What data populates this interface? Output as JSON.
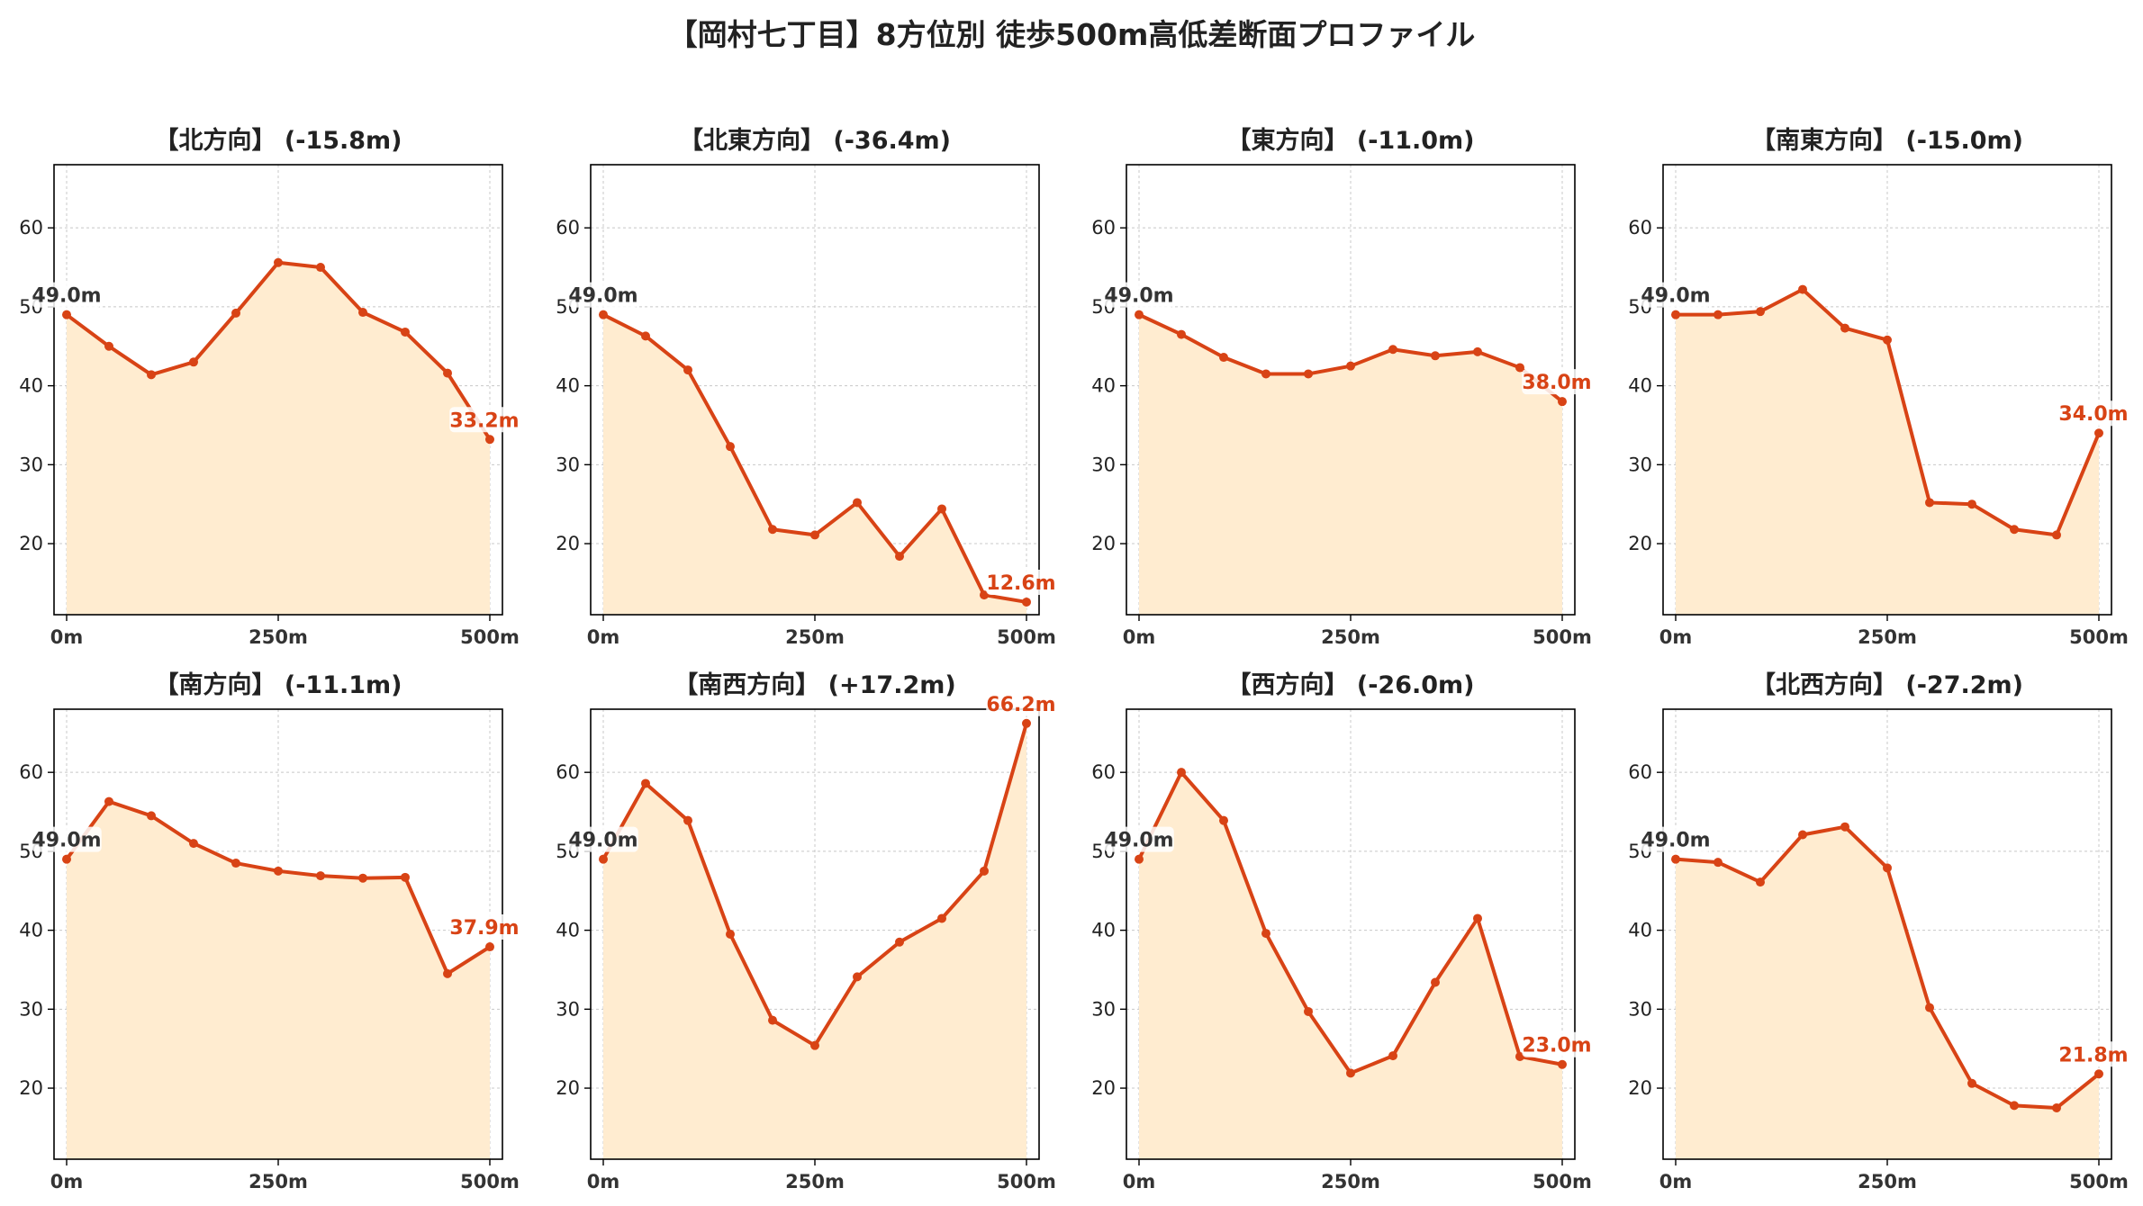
{
  "page": {
    "title": "【岡村七丁目】8方位別 徒歩500m高低差断面プロファイル"
  },
  "colors": {
    "line": "#d84315",
    "fill": "#ffecd0",
    "start_label": "#333333",
    "end_label": "#d84315",
    "grid": "#c8c8c8"
  },
  "chart_data": [
    {
      "type": "area",
      "title": "【北方向】 (-15.8m)",
      "x": [
        0,
        50,
        100,
        150,
        200,
        250,
        300,
        350,
        400,
        450,
        500
      ],
      "y": [
        49.0,
        45.0,
        41.4,
        43.0,
        49.2,
        55.6,
        55.0,
        49.3,
        46.8,
        41.6,
        33.2
      ],
      "start_label": "49.0m",
      "end_label": "33.2m",
      "xticks": [
        0,
        250,
        500
      ],
      "xtick_labels": [
        "0m",
        "250m",
        "500m"
      ],
      "yticks": [
        20,
        30,
        40,
        50,
        60
      ],
      "ylim": [
        11,
        68
      ],
      "grid": true
    },
    {
      "type": "area",
      "title": "【北東方向】 (-36.4m)",
      "x": [
        0,
        50,
        100,
        150,
        200,
        250,
        300,
        350,
        400,
        450,
        500
      ],
      "y": [
        49.0,
        46.3,
        42.0,
        32.3,
        21.8,
        21.1,
        25.2,
        18.4,
        24.4,
        13.5,
        12.6
      ],
      "start_label": "49.0m",
      "end_label": "12.6m",
      "xticks": [
        0,
        250,
        500
      ],
      "xtick_labels": [
        "0m",
        "250m",
        "500m"
      ],
      "yticks": [
        20,
        30,
        40,
        50,
        60
      ],
      "ylim": [
        11,
        68
      ],
      "grid": true
    },
    {
      "type": "area",
      "title": "【東方向】 (-11.0m)",
      "x": [
        0,
        50,
        100,
        150,
        200,
        250,
        300,
        350,
        400,
        450,
        500
      ],
      "y": [
        49.0,
        46.5,
        43.6,
        41.5,
        41.5,
        42.5,
        44.6,
        43.8,
        44.3,
        42.3,
        38.0
      ],
      "start_label": "49.0m",
      "end_label": "38.0m",
      "xticks": [
        0,
        250,
        500
      ],
      "xtick_labels": [
        "0m",
        "250m",
        "500m"
      ],
      "yticks": [
        20,
        30,
        40,
        50,
        60
      ],
      "ylim": [
        11,
        68
      ],
      "grid": true
    },
    {
      "type": "area",
      "title": "【南東方向】 (-15.0m)",
      "x": [
        0,
        50,
        100,
        150,
        200,
        250,
        300,
        350,
        400,
        450,
        500
      ],
      "y": [
        49.0,
        49.0,
        49.4,
        52.2,
        47.3,
        45.8,
        25.2,
        25.0,
        21.8,
        21.1,
        34.0
      ],
      "start_label": "49.0m",
      "end_label": "34.0m",
      "xticks": [
        0,
        250,
        500
      ],
      "xtick_labels": [
        "0m",
        "250m",
        "500m"
      ],
      "yticks": [
        20,
        30,
        40,
        50,
        60
      ],
      "ylim": [
        11,
        68
      ],
      "grid": true
    },
    {
      "type": "area",
      "title": "【南方向】 (-11.1m)",
      "x": [
        0,
        50,
        100,
        150,
        200,
        250,
        300,
        350,
        400,
        450,
        500
      ],
      "y": [
        49.0,
        56.3,
        54.5,
        51.0,
        48.5,
        47.5,
        46.9,
        46.6,
        46.7,
        34.5,
        37.9
      ],
      "start_label": "49.0m",
      "end_label": "37.9m",
      "xticks": [
        0,
        250,
        500
      ],
      "xtick_labels": [
        "0m",
        "250m",
        "500m"
      ],
      "yticks": [
        20,
        30,
        40,
        50,
        60
      ],
      "ylim": [
        11,
        68
      ],
      "grid": true
    },
    {
      "type": "area",
      "title": "【南西方向】 (+17.2m)",
      "x": [
        0,
        50,
        100,
        150,
        200,
        250,
        300,
        350,
        400,
        450,
        500
      ],
      "y": [
        49.0,
        58.6,
        53.9,
        39.5,
        28.6,
        25.4,
        34.1,
        38.5,
        41.5,
        47.5,
        66.2
      ],
      "start_label": "49.0m",
      "end_label": "66.2m",
      "xticks": [
        0,
        250,
        500
      ],
      "xtick_labels": [
        "0m",
        "250m",
        "500m"
      ],
      "yticks": [
        20,
        30,
        40,
        50,
        60
      ],
      "ylim": [
        11,
        68
      ],
      "grid": true
    },
    {
      "type": "area",
      "title": "【西方向】 (-26.0m)",
      "x": [
        0,
        50,
        100,
        150,
        200,
        250,
        300,
        350,
        400,
        450,
        500
      ],
      "y": [
        49.0,
        60.0,
        53.9,
        39.6,
        29.7,
        21.9,
        24.1,
        33.4,
        41.5,
        24.0,
        23.0
      ],
      "start_label": "49.0m",
      "end_label": "23.0m",
      "xticks": [
        0,
        250,
        500
      ],
      "xtick_labels": [
        "0m",
        "250m",
        "500m"
      ],
      "yticks": [
        20,
        30,
        40,
        50,
        60
      ],
      "ylim": [
        11,
        68
      ],
      "grid": true
    },
    {
      "type": "area",
      "title": "【北西方向】 (-27.2m)",
      "x": [
        0,
        50,
        100,
        150,
        200,
        250,
        300,
        350,
        400,
        450,
        500
      ],
      "y": [
        49.0,
        48.6,
        46.1,
        52.1,
        53.1,
        47.9,
        30.2,
        20.6,
        17.8,
        17.5,
        21.8
      ],
      "start_label": "49.0m",
      "end_label": "21.8m",
      "xticks": [
        0,
        250,
        500
      ],
      "xtick_labels": [
        "0m",
        "250m",
        "500m"
      ],
      "yticks": [
        20,
        30,
        40,
        50,
        60
      ],
      "ylim": [
        11,
        68
      ],
      "grid": true
    }
  ]
}
